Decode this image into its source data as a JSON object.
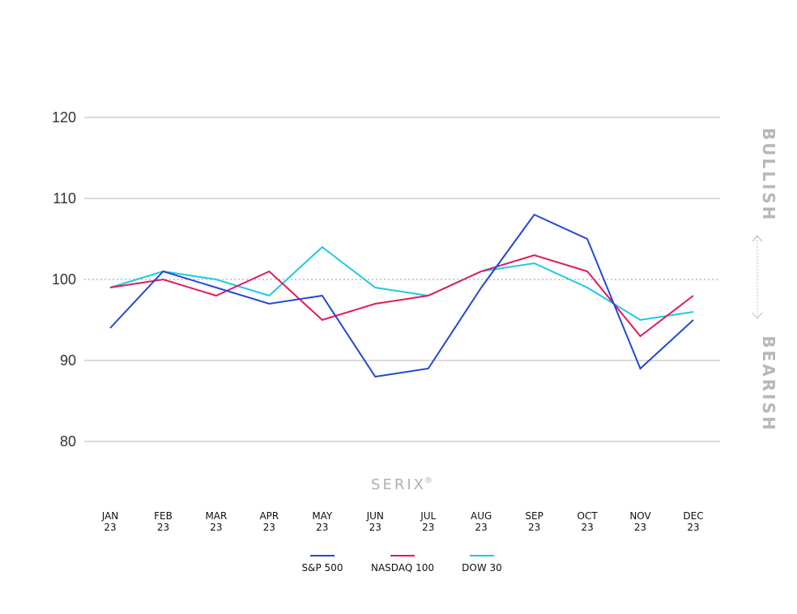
{
  "chart_data": {
    "type": "line",
    "categories": [
      [
        "JAN",
        "23"
      ],
      [
        "FEB",
        "23"
      ],
      [
        "MAR",
        "23"
      ],
      [
        "APR",
        "23"
      ],
      [
        "MAY",
        "23"
      ],
      [
        "JUN",
        "23"
      ],
      [
        "JUL",
        "23"
      ],
      [
        "AUG",
        "23"
      ],
      [
        "SEP",
        "23"
      ],
      [
        "OCT",
        "23"
      ],
      [
        "NOV",
        "23"
      ],
      [
        "DEC",
        "23"
      ]
    ],
    "series": [
      {
        "name": "S&P 500",
        "color": "#2447d4",
        "values": [
          94,
          101,
          99,
          97,
          98,
          88,
          89,
          99,
          108,
          105,
          89,
          95
        ]
      },
      {
        "name": "NASDAQ 100",
        "color": "#e0195f",
        "values": [
          99,
          100,
          98,
          101,
          95,
          97,
          98,
          101,
          103,
          101,
          93,
          98
        ]
      },
      {
        "name": "DOW 30",
        "color": "#1ec9e2",
        "values": [
          99,
          101,
          100,
          98,
          104,
          99,
          98,
          101,
          102,
          99,
          95,
          96
        ]
      }
    ],
    "yticks": [
      80,
      90,
      100,
      110,
      120
    ],
    "ylim": [
      80,
      120
    ],
    "reference_line": 100,
    "grid": true,
    "legend": "bottom",
    "side_labels": {
      "top": "BULLISH",
      "bottom": "BEARISH"
    },
    "brand": {
      "text": "SERIX",
      "mark": "®"
    }
  }
}
